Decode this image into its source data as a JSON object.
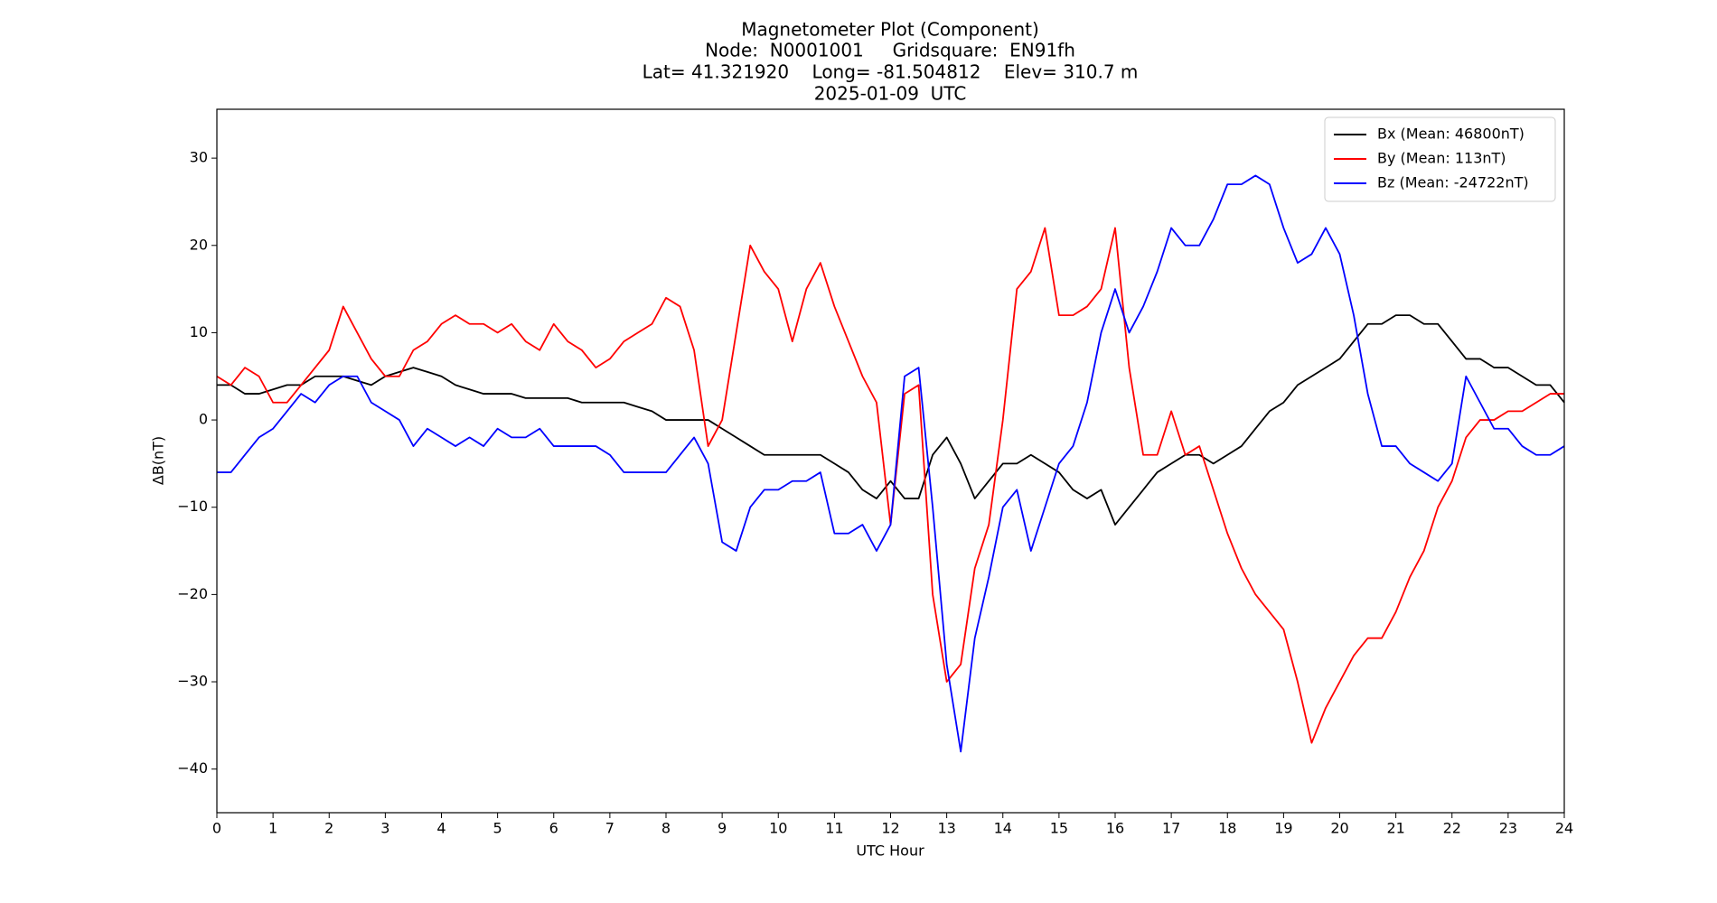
{
  "chart_data": {
    "type": "line",
    "title": [
      "Magnetometer Plot (Component)",
      "Node:  N0001001     Gridsquare:  EN91fh",
      "Lat= 41.321920    Long= -81.504812    Elev= 310.7 m",
      "2025-01-09  UTC"
    ],
    "x_label": "UTC Hour",
    "y_label": "ΔB(nT)",
    "xlim": [
      0,
      24
    ],
    "ylim": [
      -45,
      35.6
    ],
    "xticks": [
      0,
      1,
      2,
      3,
      4,
      5,
      6,
      7,
      8,
      9,
      10,
      11,
      12,
      13,
      14,
      15,
      16,
      17,
      18,
      19,
      20,
      21,
      22,
      23,
      24
    ],
    "yticks": [
      {
        "value": -40,
        "label": "−40"
      },
      {
        "value": -30,
        "label": "−30"
      },
      {
        "value": -20,
        "label": "−20"
      },
      {
        "value": -10,
        "label": "−10"
      },
      0,
      10,
      20,
      30
    ],
    "legend": "upper right",
    "x": [
      0,
      0.25,
      0.5,
      0.75,
      1,
      1.25,
      1.5,
      1.75,
      2,
      2.25,
      2.5,
      2.75,
      3,
      3.25,
      3.5,
      3.75,
      4,
      4.25,
      4.5,
      4.75,
      5,
      5.25,
      5.5,
      5.75,
      6,
      6.25,
      6.5,
      6.75,
      7,
      7.25,
      7.5,
      7.75,
      8,
      8.25,
      8.5,
      8.75,
      9,
      9.25,
      9.5,
      9.75,
      10,
      10.25,
      10.5,
      10.75,
      11,
      11.25,
      11.5,
      11.75,
      12,
      12.25,
      12.5,
      12.75,
      13,
      13.25,
      13.5,
      13.75,
      14,
      14.25,
      14.5,
      14.75,
      15,
      15.25,
      15.5,
      15.75,
      16,
      16.25,
      16.5,
      16.75,
      17,
      17.25,
      17.5,
      17.75,
      18,
      18.25,
      18.5,
      18.75,
      19,
      19.25,
      19.5,
      19.75,
      20,
      20.25,
      20.5,
      20.75,
      21,
      21.25,
      21.5,
      21.75,
      22,
      22.25,
      22.5,
      22.75,
      23,
      23.25,
      23.5,
      23.75,
      24
    ],
    "series": [
      {
        "name": "Bx (Mean: 46800nT)",
        "color": "#000000",
        "values": [
          4,
          4,
          3,
          3,
          3.5,
          4,
          4,
          5,
          5,
          5,
          4.5,
          4,
          5,
          5.5,
          6,
          5.5,
          5,
          4,
          3.5,
          3,
          3,
          3,
          2.5,
          2.5,
          2.5,
          2.5,
          2,
          2,
          2,
          2,
          1.5,
          1,
          0,
          0,
          0,
          0,
          -1,
          -2,
          -3,
          -4,
          -4,
          -4,
          -4,
          -4,
          -5,
          -6,
          -8,
          -9,
          -7,
          -9,
          -9,
          -4,
          -2,
          -5,
          -9,
          -7,
          -5,
          -5,
          -4,
          -5,
          -6,
          -8,
          -9,
          -8,
          -12,
          -10,
          -8,
          -6,
          -5,
          -4,
          -4,
          -5,
          -4,
          -3,
          -1,
          1,
          2,
          4,
          5,
          6,
          7,
          9,
          11,
          11,
          12,
          12,
          11,
          11,
          9,
          7,
          7,
          6,
          6,
          5,
          4,
          4,
          2
        ]
      },
      {
        "name": "By (Mean: 113nT)",
        "color": "#ff0000",
        "values": [
          5,
          4,
          6,
          5,
          2,
          2,
          4,
          6,
          8,
          13,
          10,
          7,
          5,
          5,
          8,
          9,
          11,
          12,
          11,
          11,
          10,
          11,
          9,
          8,
          11,
          9,
          8,
          6,
          7,
          9,
          10,
          11,
          14,
          13,
          8,
          -3,
          0,
          10,
          20,
          17,
          15,
          9,
          15,
          18,
          13,
          9,
          5,
          2,
          -12,
          3,
          4,
          -20,
          -30,
          -28,
          -17,
          -12,
          0,
          15,
          17,
          22,
          12,
          12,
          13,
          15,
          22,
          6,
          -4,
          -4,
          1,
          -4,
          -3,
          -8,
          -13,
          -17,
          -20,
          -22,
          -24,
          -30,
          -37,
          -33,
          -30,
          -27,
          -25,
          -25,
          -22,
          -18,
          -15,
          -10,
          -7,
          -2,
          0,
          0,
          1,
          1,
          2,
          3,
          3
        ]
      },
      {
        "name": "Bz (Mean: -24722nT)",
        "color": "#0000ff",
        "values": [
          -6,
          -6,
          -4,
          -2,
          -1,
          1,
          3,
          2,
          4,
          5,
          5,
          2,
          1,
          0,
          -3,
          -1,
          -2,
          -3,
          -2,
          -3,
          -1,
          -2,
          -2,
          -1,
          -3,
          -3,
          -3,
          -3,
          -4,
          -6,
          -6,
          -6,
          -6,
          -4,
          -2,
          -5,
          -14,
          -15,
          -10,
          -8,
          -8,
          -7,
          -7,
          -6,
          -13,
          -13,
          -12,
          -15,
          -12,
          5,
          6,
          -10,
          -28,
          -38,
          -25,
          -18,
          -10,
          -8,
          -15,
          -10,
          -5,
          -3,
          2,
          10,
          15,
          10,
          13,
          17,
          22,
          20,
          20,
          23,
          27,
          27,
          28,
          27,
          22,
          18,
          19,
          22,
          19,
          12,
          3,
          -3,
          -3,
          -5,
          -6,
          -7,
          -5,
          5,
          2,
          -1,
          -1,
          -3,
          -4,
          -4,
          -3
        ]
      }
    ]
  }
}
